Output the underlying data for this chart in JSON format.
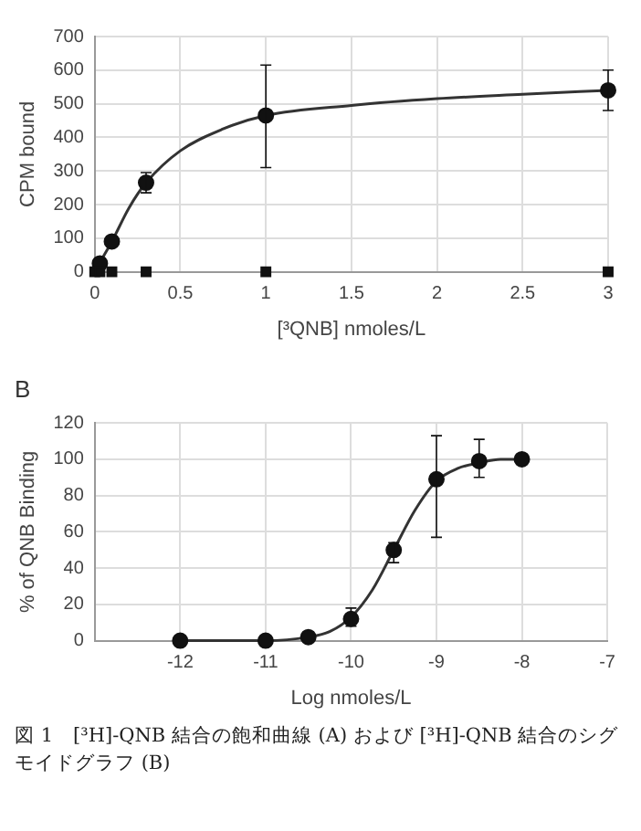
{
  "chart_data": [
    {
      "type": "scatter",
      "xlabel": "[³QNB] nmoles/L",
      "ylabel": "CPM bound",
      "xlim": [
        0,
        3
      ],
      "xticks": [
        0,
        0.5,
        1,
        1.5,
        2,
        2.5,
        3
      ],
      "ylim": [
        0,
        700
      ],
      "yticks": [
        0,
        100,
        200,
        300,
        400,
        500,
        600,
        700
      ],
      "grid": true,
      "legend": false,
      "series": [
        {
          "type": "line",
          "color": "#333333",
          "marker": "none",
          "line_style": "solid",
          "x": [
            0,
            0.05,
            0.1,
            0.2,
            0.3,
            0.5,
            0.75,
            1,
            1.5,
            2,
            2.5,
            3
          ],
          "values": [
            0,
            45,
            90,
            190,
            265,
            360,
            425,
            465,
            495,
            515,
            528,
            540
          ]
        },
        {
          "type": "scatter",
          "color": "#111111",
          "marker": "circle",
          "x": [
            0.03,
            0.1,
            0.3,
            1,
            3
          ],
          "values": [
            25,
            90,
            265,
            465,
            540
          ],
          "errors": [
            null,
            null,
            [
              235,
              295
            ],
            [
              310,
              615
            ],
            [
              480,
              600
            ]
          ]
        },
        {
          "type": "scatter",
          "color": "#111111",
          "marker": "square",
          "x": [
            0,
            0.03,
            0.1,
            0.3,
            1,
            3
          ],
          "values": [
            0,
            0,
            0,
            0,
            0,
            0
          ]
        }
      ]
    },
    {
      "type": "scatter",
      "title": "B",
      "xlabel": "Log nmoles/L",
      "ylabel": "% of QNB Binding",
      "xlim": [
        -13,
        -7
      ],
      "xticks": [
        {
          "value": -13,
          "label": null
        },
        -12,
        -11,
        -10,
        -9,
        -8,
        -7
      ],
      "ylim": [
        0,
        120
      ],
      "yticks": [
        0,
        20,
        40,
        60,
        80,
        100,
        120
      ],
      "grid": true,
      "legend": false,
      "annotations": [
        "図 1　[³H]-QNB 結合の飽和曲線 (A) および [³H]-QNB 結合のシグモイドグラフ (B)"
      ],
      "series": [
        {
          "type": "line",
          "color": "#333333",
          "marker": "none",
          "line_style": "solid",
          "x": [
            -12,
            -11,
            -10.5,
            -10.25,
            -10,
            -9.75,
            -9.5,
            -9.25,
            -9,
            -8.75,
            -8.5,
            -8.25,
            -8
          ],
          "values": [
            0,
            0,
            2,
            5,
            13,
            28,
            50,
            72,
            88,
            95,
            98,
            100,
            100
          ]
        },
        {
          "type": "scatter",
          "color": "#111111",
          "marker": "circle",
          "x": [
            -12,
            -11,
            -10.5,
            -10,
            -9.5,
            -9,
            -8.5,
            -8
          ],
          "values": [
            0,
            0,
            2,
            12,
            50,
            89,
            99,
            100
          ],
          "errors": [
            null,
            null,
            null,
            [
              8,
              18
            ],
            [
              43,
              54
            ],
            [
              57,
              113
            ],
            [
              90,
              111
            ],
            null
          ]
        }
      ]
    }
  ]
}
